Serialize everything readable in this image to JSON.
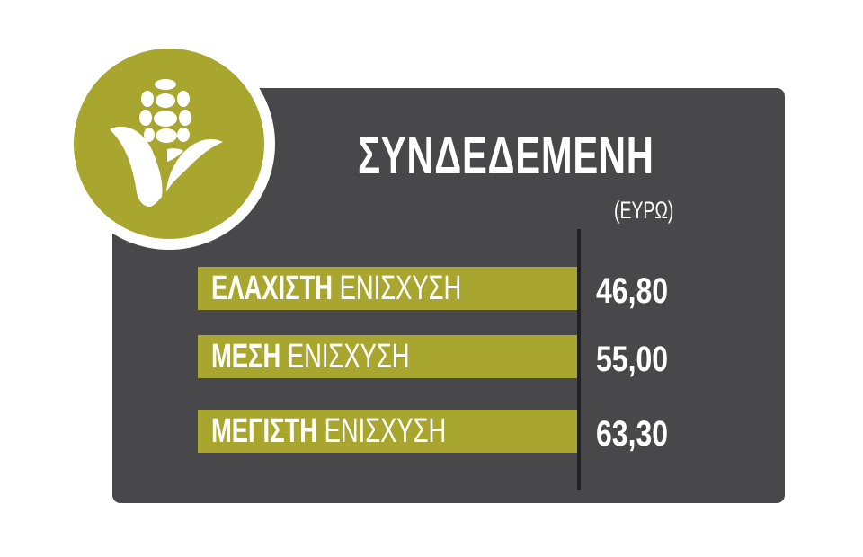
{
  "title": "ΣΥΝΔΕΔΕΜΕΝΗ",
  "unit": "(ΕΥΡΩ)",
  "icon": "corn-icon",
  "colors": {
    "accent": "#a9a62f",
    "panel": "#48484a",
    "text": "#ffffff"
  },
  "rows": [
    {
      "label_bold": "ΕΛΑΧΙΣΤΗ",
      "label_rest": " ΕΝΙΣΧΥΣΗ",
      "value": "46,80"
    },
    {
      "label_bold": "ΜΕΣΗ",
      "label_rest": " ΕΝΙΣΧΥΣΗ",
      "value": "55,00"
    },
    {
      "label_bold": "ΜΕΓΙΣΤΗ",
      "label_rest": " ΕΝΙΣΧΥΣΗ",
      "value": "63,30"
    }
  ]
}
